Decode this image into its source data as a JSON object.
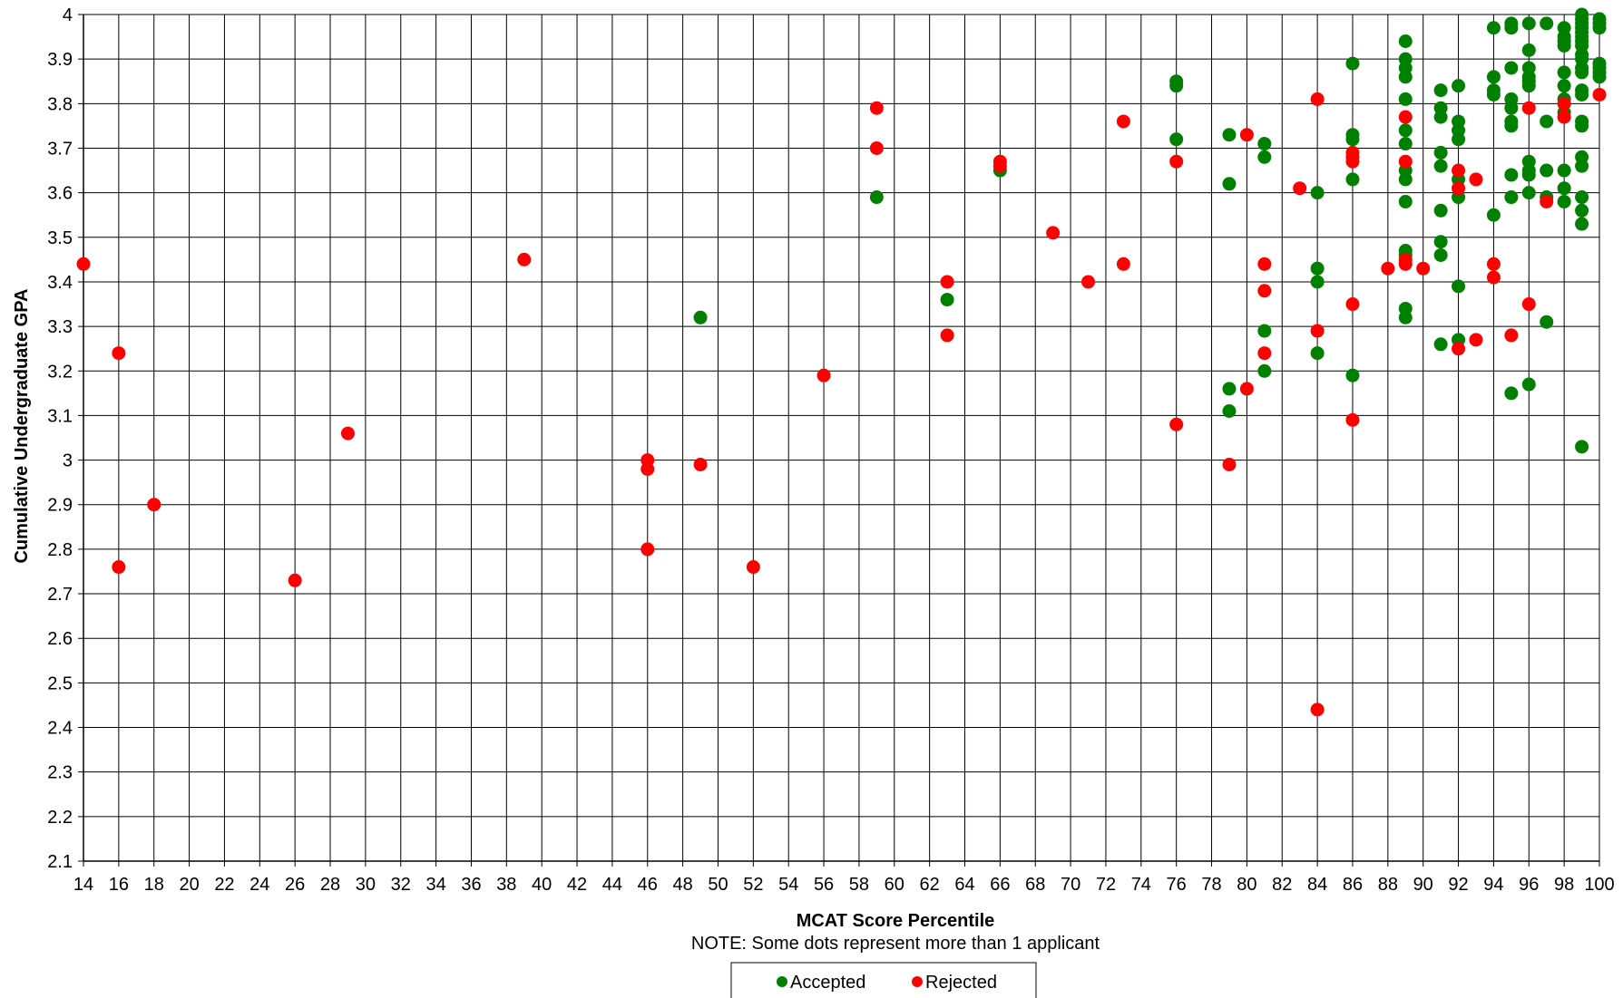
{
  "chart_data": {
    "type": "scatter",
    "xlabel": "MCAT Score Percentile",
    "ylabel": "Cumulative Undergraduate GPA",
    "note": "NOTE:  Some dots represent more than 1 applicant",
    "xlim": [
      14,
      100
    ],
    "ylim": [
      2.1,
      4.0
    ],
    "x_ticks": [
      14,
      16,
      18,
      20,
      22,
      24,
      26,
      28,
      30,
      32,
      34,
      36,
      38,
      40,
      42,
      44,
      46,
      48,
      50,
      52,
      54,
      56,
      58,
      60,
      62,
      64,
      66,
      68,
      70,
      72,
      74,
      76,
      78,
      80,
      82,
      84,
      86,
      88,
      90,
      92,
      94,
      96,
      98,
      100
    ],
    "y_ticks": [
      "2.1",
      "2.2",
      "2.3",
      "2.4",
      "2.5",
      "2.6",
      "2.7",
      "2.8",
      "2.9",
      "3",
      "3.1",
      "3.2",
      "3.3",
      "3.4",
      "3.5",
      "3.6",
      "3.7",
      "3.8",
      "3.9",
      "4"
    ],
    "grid": true,
    "legend_position": "bottom",
    "series": [
      {
        "name": "Accepted",
        "color": "#008000",
        "points": [
          [
            49,
            3.32
          ],
          [
            59,
            3.59
          ],
          [
            63,
            3.36
          ],
          [
            66,
            3.65
          ],
          [
            76,
            3.85
          ],
          [
            76,
            3.84
          ],
          [
            76,
            3.72
          ],
          [
            79,
            3.73
          ],
          [
            79,
            3.62
          ],
          [
            79,
            3.16
          ],
          [
            79,
            3.11
          ],
          [
            81,
            3.71
          ],
          [
            81,
            3.68
          ],
          [
            81,
            3.29
          ],
          [
            81,
            3.2
          ],
          [
            84,
            3.6
          ],
          [
            84,
            3.43
          ],
          [
            84,
            3.4
          ],
          [
            84,
            3.24
          ],
          [
            86,
            3.89
          ],
          [
            86,
            3.73
          ],
          [
            86,
            3.72
          ],
          [
            86,
            3.63
          ],
          [
            86,
            3.19
          ],
          [
            89,
            3.94
          ],
          [
            89,
            3.9
          ],
          [
            89,
            3.88
          ],
          [
            89,
            3.86
          ],
          [
            89,
            3.81
          ],
          [
            89,
            3.74
          ],
          [
            89,
            3.71
          ],
          [
            89,
            3.65
          ],
          [
            89,
            3.63
          ],
          [
            89,
            3.58
          ],
          [
            89,
            3.47
          ],
          [
            89,
            3.46
          ],
          [
            89,
            3.34
          ],
          [
            89,
            3.32
          ],
          [
            91,
            3.83
          ],
          [
            91,
            3.79
          ],
          [
            91,
            3.77
          ],
          [
            91,
            3.69
          ],
          [
            91,
            3.66
          ],
          [
            91,
            3.56
          ],
          [
            91,
            3.49
          ],
          [
            91,
            3.46
          ],
          [
            91,
            3.26
          ],
          [
            92,
            3.84
          ],
          [
            92,
            3.76
          ],
          [
            92,
            3.74
          ],
          [
            92,
            3.72
          ],
          [
            92,
            3.63
          ],
          [
            92,
            3.59
          ],
          [
            92,
            3.39
          ],
          [
            92,
            3.27
          ],
          [
            94,
            3.97
          ],
          [
            94,
            3.86
          ],
          [
            94,
            3.83
          ],
          [
            94,
            3.82
          ],
          [
            94,
            3.55
          ],
          [
            95,
            3.98
          ],
          [
            95,
            3.97
          ],
          [
            95,
            3.88
          ],
          [
            95,
            3.81
          ],
          [
            95,
            3.79
          ],
          [
            95,
            3.76
          ],
          [
            95,
            3.75
          ],
          [
            95,
            3.64
          ],
          [
            95,
            3.59
          ],
          [
            95,
            3.15
          ],
          [
            96,
            3.98
          ],
          [
            96,
            3.92
          ],
          [
            96,
            3.88
          ],
          [
            96,
            3.86
          ],
          [
            96,
            3.85
          ],
          [
            96,
            3.84
          ],
          [
            96,
            3.67
          ],
          [
            96,
            3.65
          ],
          [
            96,
            3.64
          ],
          [
            96,
            3.6
          ],
          [
            96,
            3.17
          ],
          [
            97,
            3.98
          ],
          [
            97,
            3.76
          ],
          [
            97,
            3.65
          ],
          [
            97,
            3.59
          ],
          [
            97,
            3.31
          ],
          [
            98,
            3.97
          ],
          [
            98,
            3.95
          ],
          [
            98,
            3.94
          ],
          [
            98,
            3.93
          ],
          [
            98,
            3.87
          ],
          [
            98,
            3.84
          ],
          [
            98,
            3.81
          ],
          [
            98,
            3.78
          ],
          [
            98,
            3.65
          ],
          [
            98,
            3.61
          ],
          [
            98,
            3.58
          ],
          [
            99,
            4.0
          ],
          [
            99,
            3.99
          ],
          [
            99,
            3.98
          ],
          [
            99,
            3.97
          ],
          [
            99,
            3.96
          ],
          [
            99,
            3.95
          ],
          [
            99,
            3.94
          ],
          [
            99,
            3.93
          ],
          [
            99,
            3.91
          ],
          [
            99,
            3.9
          ],
          [
            99,
            3.88
          ],
          [
            99,
            3.87
          ],
          [
            99,
            3.83
          ],
          [
            99,
            3.82
          ],
          [
            99,
            3.76
          ],
          [
            99,
            3.75
          ],
          [
            99,
            3.68
          ],
          [
            99,
            3.66
          ],
          [
            99,
            3.59
          ],
          [
            99,
            3.56
          ],
          [
            99,
            3.53
          ],
          [
            99,
            3.03
          ],
          [
            100,
            3.99
          ],
          [
            100,
            3.98
          ],
          [
            100,
            3.97
          ],
          [
            100,
            3.89
          ],
          [
            100,
            3.88
          ],
          [
            100,
            3.87
          ],
          [
            100,
            3.86
          ]
        ]
      },
      {
        "name": "Rejected",
        "color": "#ff0000",
        "points": [
          [
            14,
            3.44
          ],
          [
            16,
            3.24
          ],
          [
            16,
            2.76
          ],
          [
            18,
            2.9
          ],
          [
            26,
            2.73
          ],
          [
            29,
            3.06
          ],
          [
            39,
            3.45
          ],
          [
            46,
            3.0
          ],
          [
            46,
            2.98
          ],
          [
            46,
            2.8
          ],
          [
            49,
            2.99
          ],
          [
            52,
            2.76
          ],
          [
            56,
            3.19
          ],
          [
            59,
            3.79
          ],
          [
            59,
            3.7
          ],
          [
            63,
            3.4
          ],
          [
            63,
            3.28
          ],
          [
            66,
            3.67
          ],
          [
            66,
            3.66
          ],
          [
            69,
            3.51
          ],
          [
            71,
            3.4
          ],
          [
            73,
            3.76
          ],
          [
            73,
            3.44
          ],
          [
            76,
            3.67
          ],
          [
            76,
            3.08
          ],
          [
            79,
            2.99
          ],
          [
            80,
            3.73
          ],
          [
            80,
            3.16
          ],
          [
            81,
            3.44
          ],
          [
            81,
            3.38
          ],
          [
            81,
            3.24
          ],
          [
            83,
            3.61
          ],
          [
            84,
            3.81
          ],
          [
            84,
            3.29
          ],
          [
            84,
            2.44
          ],
          [
            86,
            3.69
          ],
          [
            86,
            3.68
          ],
          [
            86,
            3.67
          ],
          [
            86,
            3.35
          ],
          [
            86,
            3.09
          ],
          [
            88,
            3.43
          ],
          [
            89,
            3.77
          ],
          [
            89,
            3.67
          ],
          [
            89,
            3.45
          ],
          [
            89,
            3.44
          ],
          [
            90,
            3.43
          ],
          [
            92,
            3.65
          ],
          [
            92,
            3.61
          ],
          [
            92,
            3.25
          ],
          [
            93,
            3.63
          ],
          [
            93,
            3.27
          ],
          [
            94,
            3.44
          ],
          [
            94,
            3.41
          ],
          [
            95,
            3.28
          ],
          [
            96,
            3.79
          ],
          [
            96,
            3.35
          ],
          [
            97,
            3.58
          ],
          [
            98,
            3.8
          ],
          [
            98,
            3.77
          ],
          [
            100,
            3.82
          ]
        ]
      }
    ]
  }
}
